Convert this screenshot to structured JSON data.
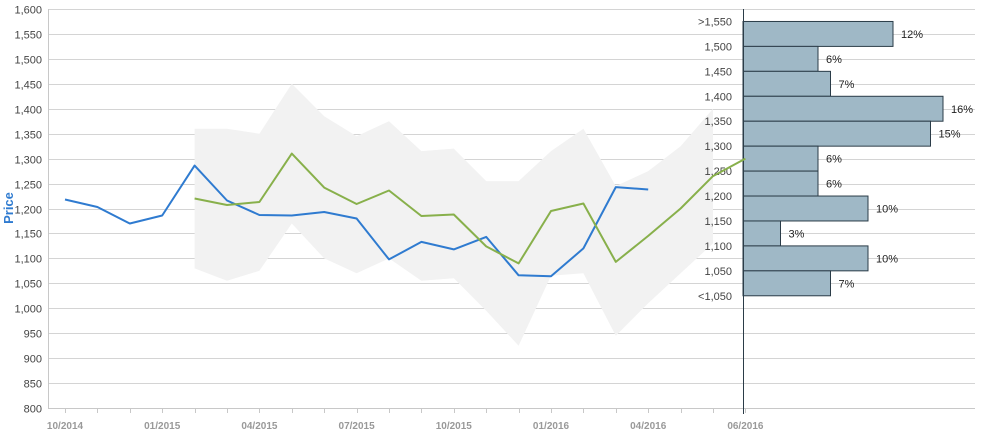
{
  "chart_data": {
    "type": "line",
    "ylabel": "Price",
    "ylim": [
      800,
      1600
    ],
    "yticks": [
      800,
      850,
      900,
      950,
      1000,
      1050,
      1100,
      1150,
      1200,
      1250,
      1300,
      1350,
      1400,
      1450,
      1500,
      1550,
      1600
    ],
    "ytick_labels": [
      "800",
      "850",
      "900",
      "950",
      "1,000",
      "1,050",
      "1,100",
      "1,150",
      "1,200",
      "1,250",
      "1,300",
      "1,350",
      "1,400",
      "1,450",
      "1,500",
      "1,550",
      "1,600"
    ],
    "x_tick_labels": [
      "10/2014",
      "01/2015",
      "04/2015",
      "07/2015",
      "10/2015",
      "01/2016",
      "04/2016",
      "06/2016"
    ],
    "grid": true,
    "series": [
      {
        "color": "#2f7bd0",
        "points": [
          [
            "2014-10",
            1218
          ],
          [
            "2014-11",
            1203
          ],
          [
            "2014-12",
            1170
          ],
          [
            "2015-01",
            1186
          ],
          [
            "2015-02",
            1286
          ],
          [
            "2015-03",
            1216
          ],
          [
            "2015-04",
            1187
          ],
          [
            "2015-05",
            1186
          ],
          [
            "2015-06",
            1193
          ],
          [
            "2015-07",
            1180
          ],
          [
            "2015-08",
            1098
          ],
          [
            "2015-09",
            1133
          ],
          [
            "2015-10",
            1118
          ],
          [
            "2015-11",
            1143
          ],
          [
            "2015-12",
            1066
          ],
          [
            "2016-01",
            1064
          ],
          [
            "2016-02",
            1120
          ],
          [
            "2016-03",
            1243
          ],
          [
            "2016-04",
            1238
          ]
        ]
      },
      {
        "color": "#88b04b",
        "points": [
          [
            "2015-02",
            1220
          ],
          [
            "2015-03",
            1207
          ],
          [
            "2015-04",
            1213
          ],
          [
            "2015-05",
            1310
          ],
          [
            "2015-06",
            1242
          ],
          [
            "2015-07",
            1209
          ],
          [
            "2015-08",
            1236
          ],
          [
            "2015-09",
            1185
          ],
          [
            "2015-10",
            1188
          ],
          [
            "2015-11",
            1124
          ],
          [
            "2015-12",
            1090
          ],
          [
            "2016-01",
            1195
          ],
          [
            "2016-02",
            1210
          ],
          [
            "2016-03",
            1093
          ],
          [
            "2016-04",
            1145
          ],
          [
            "2016-05",
            1200
          ],
          [
            "2016-06",
            1265
          ],
          [
            "2016-07",
            1300
          ]
        ]
      }
    ],
    "band": {
      "color": "#f2f2f2",
      "upper": [
        [
          "2015-02",
          1360
        ],
        [
          "2015-03",
          1360
        ],
        [
          "2015-04",
          1350
        ],
        [
          "2015-05",
          1450
        ],
        [
          "2015-06",
          1385
        ],
        [
          "2015-07",
          1345
        ],
        [
          "2015-08",
          1375
        ],
        [
          "2015-09",
          1315
        ],
        [
          "2015-10",
          1320
        ],
        [
          "2015-11",
          1255
        ],
        [
          "2015-12",
          1255
        ],
        [
          "2016-01",
          1315
        ],
        [
          "2016-02",
          1360
        ],
        [
          "2016-03",
          1245
        ],
        [
          "2016-04",
          1275
        ],
        [
          "2016-05",
          1325
        ],
        [
          "2016-06",
          1400
        ]
      ],
      "lower": [
        [
          "2015-02",
          1080
        ],
        [
          "2015-03",
          1055
        ],
        [
          "2015-04",
          1075
        ],
        [
          "2015-05",
          1170
        ],
        [
          "2015-06",
          1100
        ],
        [
          "2015-07",
          1070
        ],
        [
          "2015-08",
          1100
        ],
        [
          "2015-09",
          1055
        ],
        [
          "2015-10",
          1060
        ],
        [
          "2015-11",
          995
        ],
        [
          "2015-12",
          925
        ],
        [
          "2016-01",
          1065
        ],
        [
          "2016-02",
          1070
        ],
        [
          "2016-03",
          945
        ],
        [
          "2016-04",
          1010
        ],
        [
          "2016-05",
          1070
        ],
        [
          "2016-06",
          1130
        ]
      ]
    },
    "histogram": {
      "color": "#9fb8c6",
      "bins": [
        {
          "label": ">1,550",
          "lower": 1525,
          "upper": 1575,
          "percent": 12,
          "percent_label": "12%"
        },
        {
          "label": "1,500",
          "lower": 1475,
          "upper": 1525,
          "percent": 6,
          "percent_label": "6%"
        },
        {
          "label": "1,450",
          "lower": 1425,
          "upper": 1475,
          "percent": 7,
          "percent_label": "7%"
        },
        {
          "label": "1,400",
          "lower": 1375,
          "upper": 1425,
          "percent": 16,
          "percent_label": "16%"
        },
        {
          "label": "1,350",
          "lower": 1325,
          "upper": 1375,
          "percent": 15,
          "percent_label": "15%"
        },
        {
          "label": "1,300",
          "lower": 1275,
          "upper": 1325,
          "percent": 6,
          "percent_label": "6%"
        },
        {
          "label": "1,250",
          "lower": 1225,
          "upper": 1275,
          "percent": 6,
          "percent_label": "6%"
        },
        {
          "label": "1,200",
          "lower": 1175,
          "upper": 1225,
          "percent": 10,
          "percent_label": "10%"
        },
        {
          "label": "1,150",
          "lower": 1125,
          "upper": 1175,
          "percent": 3,
          "percent_label": "3%"
        },
        {
          "label": "1,100",
          "lower": 1075,
          "upper": 1125,
          "percent": 10,
          "percent_label": "10%"
        },
        {
          "label": "1,050",
          "lower": 1025,
          "upper": 1075,
          "percent": 7,
          "percent_label": "7%"
        },
        {
          "label": "<1,050",
          "lower": 1000,
          "upper": 1025,
          "percent": 0,
          "percent_label": ""
        }
      ]
    }
  }
}
